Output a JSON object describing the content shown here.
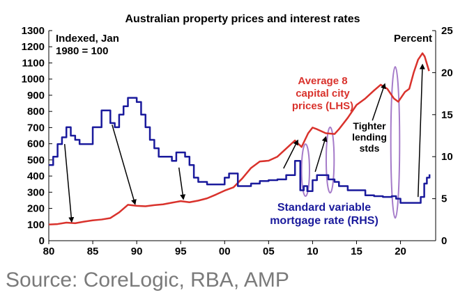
{
  "chart_data": {
    "type": "line",
    "title": "Australian property prices and interest rates",
    "left_axis_label": [
      "Indexed, Jan",
      "1980 = 100"
    ],
    "right_axis_label": "Percent",
    "x_ticks": [
      "80",
      "85",
      "90",
      "95",
      "00",
      "05",
      "10",
      "15",
      "20"
    ],
    "x_tick_values": [
      1980,
      1985,
      1990,
      1995,
      2000,
      2005,
      2010,
      2015,
      2020
    ],
    "xlim": [
      1980,
      2024
    ],
    "ylim_left": [
      0,
      1300
    ],
    "y_ticks_left": [
      "0",
      "100",
      "200",
      "300",
      "400",
      "500",
      "600",
      "700",
      "800",
      "900",
      "1000",
      "1100",
      "1200",
      "1300"
    ],
    "ylim_right": [
      0,
      25
    ],
    "y_ticks_right": [
      "0",
      "5",
      "10",
      "15",
      "20",
      "25"
    ],
    "grid": false,
    "series": [
      {
        "name": "Average 8 capital city prices (LHS)",
        "axis": "left",
        "color": "#d9322c",
        "x": [
          1980,
          1981,
          1982,
          1983,
          1984,
          1985,
          1986,
          1987,
          1988,
          1989,
          1990,
          1991,
          1992,
          1993,
          1994,
          1995,
          1996,
          1997,
          1998,
          1999,
          2000,
          2001,
          2002,
          2003,
          2004,
          2005,
          2006,
          2007,
          2008,
          2008.75,
          2009.5,
          2010,
          2010.5,
          2011.5,
          2012.5,
          2013,
          2014,
          2015,
          2016,
          2017,
          2017.75,
          2018.5,
          2019.25,
          2019.75,
          2020.5,
          2021,
          2021.5,
          2022,
          2022.5,
          2022.75,
          2023.25
        ],
        "values": [
          100,
          103,
          112,
          108,
          118,
          126,
          131,
          140,
          175,
          222,
          216,
          213,
          220,
          225,
          235,
          245,
          238,
          248,
          262,
          285,
          310,
          330,
          385,
          450,
          490,
          495,
          520,
          570,
          620,
          580,
          665,
          700,
          690,
          665,
          660,
          690,
          760,
          840,
          880,
          930,
          965,
          940,
          880,
          860,
          920,
          940,
          1040,
          1120,
          1160,
          1140,
          1050
        ]
      },
      {
        "name": "Standard variable mortgage rate (RHS)",
        "axis": "right",
        "color": "#1a1a9c",
        "x": [
          1980,
          1980.5,
          1981,
          1981.5,
          1982,
          1982.5,
          1983,
          1983.5,
          1984,
          1985,
          1986,
          1986.5,
          1987,
          1987.5,
          1988,
          1988.5,
          1989,
          1989.5,
          1990,
          1990.5,
          1991,
          1991.5,
          1992,
          1992.5,
          1993,
          1994,
          1994.5,
          1995,
          1995.5,
          1996,
          1996.5,
          1997,
          1998,
          1999,
          2000,
          2000.5,
          2001,
          2001.5,
          2002,
          2003,
          2004,
          2005,
          2006,
          2007,
          2008,
          2008.6,
          2009,
          2009.4,
          2010,
          2010.5,
          2011,
          2011.8,
          2012.5,
          2013,
          2014,
          2015,
          2016,
          2017,
          2018,
          2019,
          2019.5,
          2020,
          2021,
          2022,
          2022.3,
          2022.7,
          2023,
          2023.3
        ],
        "values": [
          9,
          10,
          11.5,
          12.3,
          13.5,
          12.5,
          12,
          11.5,
          11.5,
          13.5,
          15.5,
          15.5,
          14,
          13.5,
          15,
          16,
          17,
          17,
          16.5,
          15,
          13.5,
          12,
          11,
          10,
          10,
          9.5,
          10.5,
          10.5,
          10,
          9,
          7.5,
          7,
          6.7,
          6.7,
          7.5,
          8,
          8,
          6.5,
          6.5,
          6.8,
          7.1,
          7.2,
          7.3,
          7.8,
          9.5,
          6,
          6.5,
          5.9,
          7.2,
          7.8,
          7.8,
          7.3,
          7,
          6.5,
          6,
          6,
          5.4,
          5.3,
          5.2,
          5.3,
          5,
          4.5,
          4.5,
          4.5,
          5.2,
          6.8,
          7.5,
          7.9
        ]
      }
    ],
    "annotations": {
      "red_series_label": [
        "Average 8",
        "capital city",
        "prices (LHS)"
      ],
      "blue_series_label": [
        "Standard variable",
        "mortgage rate (RHS)"
      ],
      "lending_label": [
        "Tighter",
        "lending",
        "stds"
      ]
    },
    "arrows": [
      {
        "from": [
          1981.8,
          11.5
        ],
        "to": [
          1982.6,
          2.3
        ]
      },
      {
        "from": [
          1987.2,
          13.8
        ],
        "to": [
          1989.8,
          4.4
        ]
      },
      {
        "from": [
          1994.8,
          8.7
        ],
        "to": [
          1995.3,
          5.0
        ]
      },
      {
        "from": [
          2006.7,
          8.6
        ],
        "to": [
          2008.3,
          11.9
        ]
      },
      {
        "from": [
          2010.3,
          8.2
        ],
        "to": [
          2011.5,
          12.3
        ]
      },
      {
        "from": [
          2016.8,
          14.3
        ],
        "to": [
          2018.2,
          18.6
        ]
      },
      {
        "from": [
          2022.0,
          5.2
        ],
        "to": [
          2022.5,
          20.9
        ]
      }
    ],
    "ellipses": [
      {
        "x": 2009.2,
        "y": 8.4,
        "rx": 0.45,
        "ry": 3.1
      },
      {
        "x": 2012.0,
        "y": 9.6,
        "rx": 0.45,
        "ry": 3.9
      },
      {
        "x": 2019.4,
        "y": 11.7,
        "rx": 0.5,
        "ry": 9.0
      }
    ],
    "ellipse_color": "#a57bc9"
  },
  "source": "Source: CoreLogic, RBA, AMP"
}
